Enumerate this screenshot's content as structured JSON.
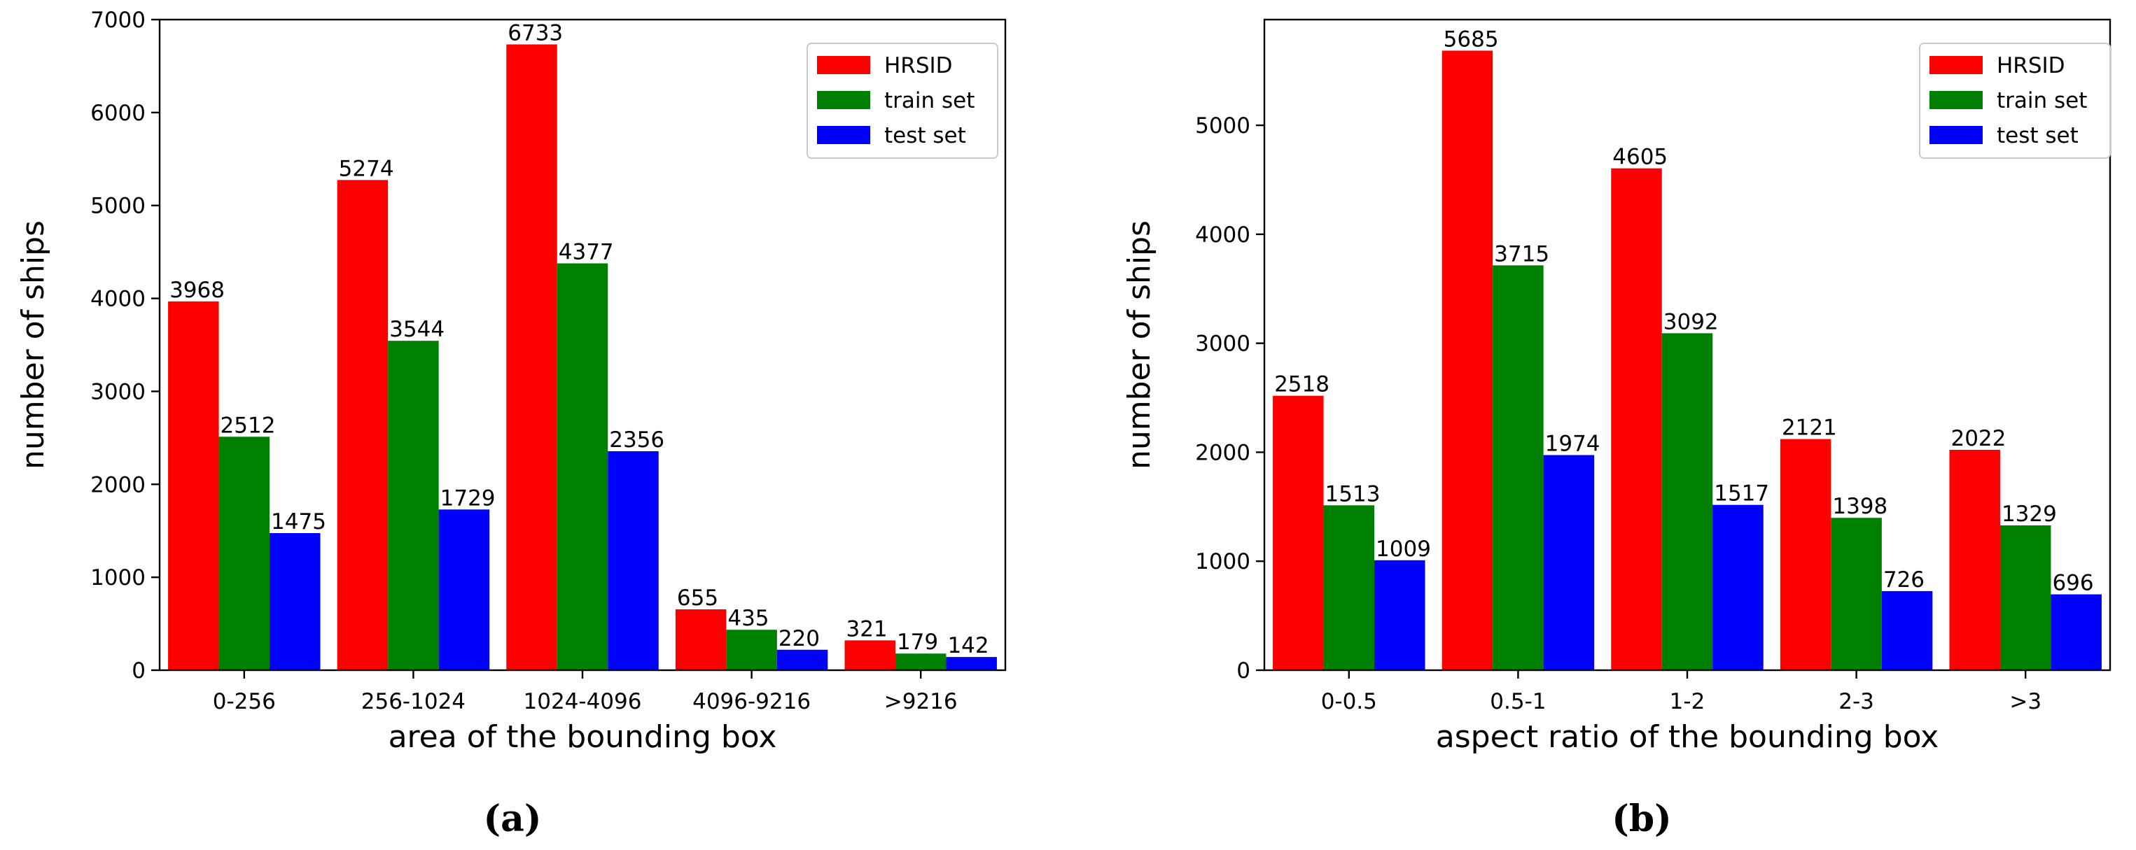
{
  "chart_data": [
    {
      "type": "bar",
      "panel_label": "(a)",
      "xlabel": "area of the bounding box",
      "ylabel": "number of ships",
      "categories": [
        "0-256",
        "256-1024",
        "1024-4096",
        "4096-9216",
        ">9216"
      ],
      "series": [
        {
          "name": "HRSID",
          "color": "#ff0000",
          "values": [
            3968,
            5274,
            6733,
            655,
            321
          ]
        },
        {
          "name": "train set",
          "color": "#008000",
          "values": [
            2512,
            3544,
            4377,
            435,
            179
          ]
        },
        {
          "name": "test set",
          "color": "#0000ff",
          "values": [
            1475,
            1729,
            2356,
            220,
            142
          ]
        }
      ],
      "ylim": [
        0,
        7000
      ],
      "yticks": [
        0,
        1000,
        2000,
        3000,
        4000,
        5000,
        6000,
        7000
      ],
      "legend_position": "top-right",
      "grid": false
    },
    {
      "type": "bar",
      "panel_label": "(b)",
      "xlabel": "aspect ratio of the bounding box",
      "ylabel": "number of ships",
      "categories": [
        "0-0.5",
        "0.5-1",
        "1-2",
        "2-3",
        ">3"
      ],
      "series": [
        {
          "name": "HRSID",
          "color": "#ff0000",
          "values": [
            2518,
            5685,
            4605,
            2121,
            2022
          ]
        },
        {
          "name": "train set",
          "color": "#008000",
          "values": [
            1513,
            3715,
            3092,
            1398,
            1329
          ]
        },
        {
          "name": "test set",
          "color": "#0000ff",
          "values": [
            1009,
            1974,
            1517,
            726,
            696
          ]
        }
      ],
      "ylim": [
        0,
        5970
      ],
      "yticks": [
        0,
        1000,
        2000,
        3000,
        4000,
        5000
      ],
      "legend_position": "top-right",
      "grid": false
    }
  ]
}
